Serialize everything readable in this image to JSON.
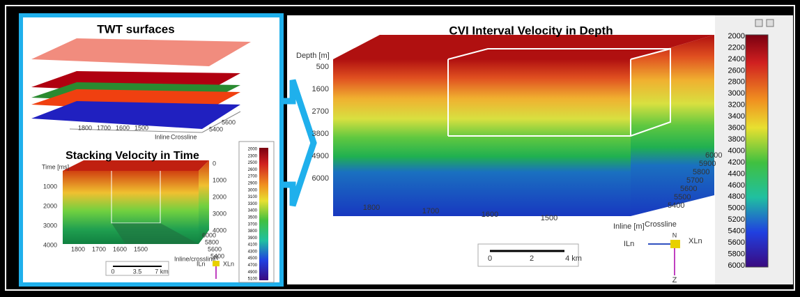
{
  "twt_panel": {
    "title": "TWT surfaces",
    "inline_ticks": [
      "1800",
      "1700",
      "1600",
      "1500"
    ],
    "inline_label": "Inline",
    "crossline_label": "Crossline",
    "crossline_ticks": [
      "5400",
      "5600"
    ]
  },
  "stacking_panel": {
    "title": "Stacking Velocity in Time",
    "time_label": "Time [ms]",
    "time_ticks": [
      "1000",
      "2000",
      "3000",
      "4000"
    ],
    "right_ticks": [
      "0",
      "1000",
      "2000",
      "3000",
      "4000"
    ],
    "inline_ticks": [
      "1800",
      "1700",
      "1600",
      "1500"
    ],
    "crossline_ticks": [
      "5400",
      "5600",
      "5800",
      "6000"
    ],
    "axis_label": "Inline/crossline",
    "scale_ticks": [
      "0",
      "3.5",
      "7 km"
    ],
    "colorbar_ticks": [
      "2000",
      "2300",
      "2500",
      "2600",
      "2700",
      "2900",
      "3000",
      "3100",
      "3300",
      "3400",
      "3500",
      "3700",
      "3800",
      "3900",
      "4100",
      "4300",
      "4500",
      "4700",
      "4900",
      "5100"
    ],
    "compass": {
      "north": "N",
      "xline": "XLn",
      "iline": "ILn"
    }
  },
  "cvi_panel": {
    "title": "CVI Interval Velocity in Depth",
    "depth_label": "Depth [m]",
    "depth_ticks": [
      "500",
      "1600",
      "2700",
      "3800",
      "4900",
      "6000"
    ],
    "inline_ticks": [
      "1800",
      "1700",
      "1600",
      "1500"
    ],
    "crossline_ticks": [
      "5400",
      "5500",
      "5600",
      "5700",
      "5800",
      "5900",
      "6000"
    ],
    "inline_label": "Inline [m]",
    "crossline_label": "Crossline",
    "scale_ticks": [
      "0",
      "2",
      "4 km"
    ],
    "colorbar_ticks": [
      "2000",
      "2200",
      "2400",
      "2600",
      "2800",
      "3000",
      "3200",
      "3400",
      "3600",
      "3800",
      "4000",
      "4200",
      "4400",
      "4600",
      "4800",
      "5000",
      "5200",
      "5400",
      "5600",
      "5800",
      "6000"
    ],
    "compass": {
      "north": "N",
      "xline": "XLn",
      "iline": "ILn",
      "z": "Z"
    }
  }
}
